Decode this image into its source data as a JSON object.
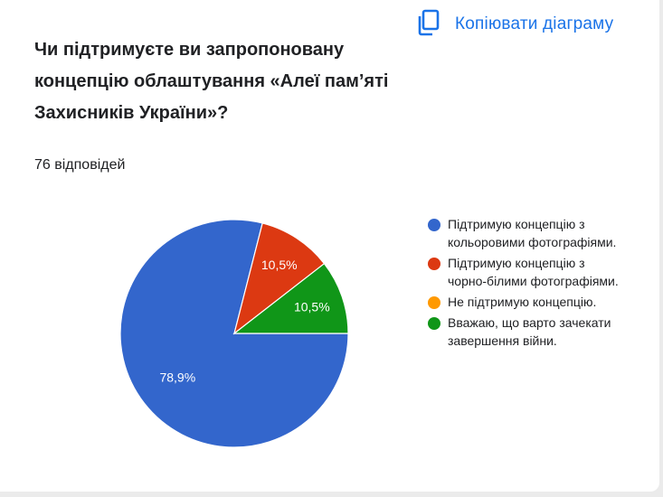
{
  "header": {
    "copy_label": "Копіювати діаграму",
    "copy_icon": "copy-icon"
  },
  "question": "Чи підтримуєте ви запропоновану концепцію облаштування «Алеї пам’яті Захисників України»?",
  "responses_count": "76 відповідей",
  "colors": {
    "accent": "#1a73e8"
  },
  "chart_data": {
    "type": "pie",
    "title": "",
    "total_responses": 76,
    "start_angle_deg": 0,
    "direction": "clockwise",
    "series": [
      {
        "name": "Підтримую концепцію з кольоровими фотографіями.",
        "value": 78.9,
        "label": "78,9%",
        "color": "#3366cc"
      },
      {
        "name": "Підтримую концепцію з чорно-білими фотографіями.",
        "value": 10.5,
        "label": "10,5%",
        "color": "#dc3912"
      },
      {
        "name": "Не підтримую концепцію.",
        "value": 0,
        "label": "",
        "color": "#ff9900"
      },
      {
        "name": "Вважаю, що варто зачекати завершення війни.",
        "value": 10.5,
        "label": "10,5%",
        "color": "#109618"
      }
    ],
    "legend_position": "right"
  }
}
